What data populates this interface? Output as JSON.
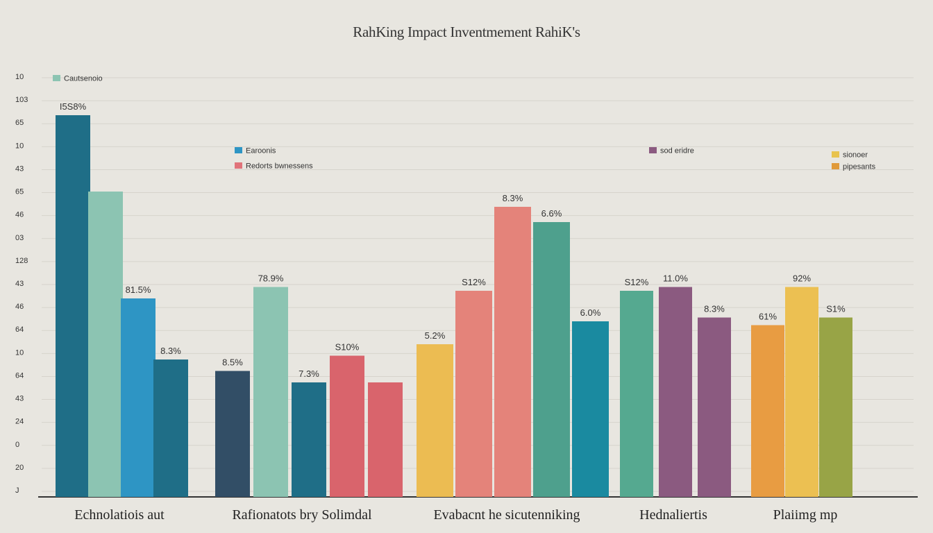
{
  "chart_data": {
    "type": "bar",
    "title": "RahKing Impact Inventmement RahiK's",
    "y_tick_labels": [
      "10",
      "103",
      "65",
      "10",
      "43",
      "65",
      "46",
      "03",
      "128",
      "43",
      "46",
      "64",
      "10",
      "64",
      "43",
      "24",
      "0",
      "20",
      "J"
    ],
    "grid": true,
    "legend": [
      {
        "label": "Cautsenoio",
        "color": "#8cc4b2"
      },
      {
        "label": "Earoonis",
        "color": "#2e95c4"
      },
      {
        "label": "Redorts bwnessens",
        "color": "#e0737a"
      },
      {
        "label": "sod eridre",
        "color": "#8b5a80"
      },
      {
        "label": "sionoer",
        "color": "#e8c34e"
      },
      {
        "label": "pipesants",
        "color": "#e09a3a"
      }
    ],
    "ylim": [
      0,
      100
    ],
    "categories": [
      "Echnolatiois aut",
      "Rafionatots bry Solimdal",
      "Evabacnt he sicutenniking",
      "Hednaliertis",
      "Plaiimg mp"
    ],
    "bars": [
      {
        "category": 0,
        "value": 100,
        "color": "#1f6e87",
        "label": "I5S8%"
      },
      {
        "category": 0,
        "value": 80,
        "color": "#8cc4b2",
        "label": ""
      },
      {
        "category": 0,
        "value": 52,
        "color": "#2e95c4",
        "label": "81.5%"
      },
      {
        "category": 0,
        "value": 36,
        "color": "#1f6e87",
        "label": "8.3%"
      },
      {
        "category": 1,
        "value": 33,
        "color": "#324e66",
        "label": "8.5%"
      },
      {
        "category": 1,
        "value": 55,
        "color": "#8cc4b2",
        "label": "78.9%"
      },
      {
        "category": 1,
        "value": 30,
        "color": "#1f6e87",
        "label": "7.3%"
      },
      {
        "category": 1,
        "value": 37,
        "color": "#d9646c",
        "label": "S10%"
      },
      {
        "category": 1,
        "value": 30,
        "color": "#d9646c",
        "label": ""
      },
      {
        "category": 2,
        "value": 40,
        "color": "#ecbc52",
        "label": "5.2%"
      },
      {
        "category": 2,
        "value": 54,
        "color": "#e4837a",
        "label": "S12%"
      },
      {
        "category": 2,
        "value": 76,
        "color": "#e4837a",
        "label": "8.3%"
      },
      {
        "category": 2,
        "value": 72,
        "color": "#4ea08d",
        "label": "6.6%"
      },
      {
        "category": 2,
        "value": 46,
        "color": "#1a8aa0",
        "label": "6.0%"
      },
      {
        "category": 3,
        "value": 54,
        "color": "#55a990",
        "label": "S12%"
      },
      {
        "category": 3,
        "value": 55,
        "color": "#8b5a80",
        "label": "11.0%"
      },
      {
        "category": 3,
        "value": 47,
        "color": "#8b5a80",
        "label": "8.3%"
      },
      {
        "category": 4,
        "value": 45,
        "color": "#e89c42",
        "label": "61%"
      },
      {
        "category": 4,
        "value": 55,
        "color": "#ecc052",
        "label": "92%"
      },
      {
        "category": 4,
        "value": 47,
        "color": "#98a446",
        "label": "S1%"
      }
    ]
  }
}
